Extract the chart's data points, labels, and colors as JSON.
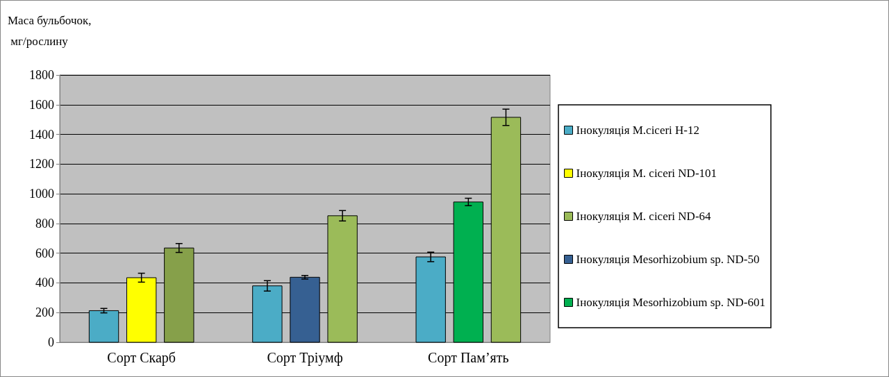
{
  "chart_data": {
    "type": "bar",
    "ylabel": "Маса бульбочок,\n мг/рослину",
    "categories": [
      "Сорт Скарб",
      "Сорт Тріумф",
      "Сорт Пам’ять"
    ],
    "series": [
      {
        "name": "Інокуляція M.ciceri H-12",
        "color": "#4bacc6",
        "values": [
          213,
          380,
          575
        ],
        "errors": [
          15,
          35,
          32
        ]
      },
      {
        "name": "Інокуляція M. ciceri ND-101",
        "color": "#ffff00",
        "values": [
          435,
          null,
          null
        ],
        "errors": [
          30,
          null,
          null
        ]
      },
      {
        "name": "Інокуляція M. ciceri ND-64",
        "color": "#9bbb59",
        "colors": [
          "#86a04a",
          "#9bbb59",
          "#9bbb59"
        ],
        "values": [
          635,
          852,
          1515
        ],
        "errors": [
          30,
          35,
          55
        ]
      },
      {
        "name": "Інокуляція Mesorhizobium sp. ND-50",
        "color": "#366092",
        "values": [
          null,
          438,
          null
        ],
        "errors": [
          null,
          12,
          null
        ]
      },
      {
        "name": "Інокуляція Mesorhizobium sp. ND-601",
        "color": "#00b050",
        "values": [
          null,
          null,
          945
        ],
        "errors": [
          null,
          null,
          25
        ]
      }
    ],
    "ylim": [
      0,
      1800
    ],
    "yticks": [
      0,
      200,
      400,
      600,
      800,
      1000,
      1200,
      1400,
      1600,
      1800
    ],
    "grid": "y",
    "legend": "right"
  }
}
